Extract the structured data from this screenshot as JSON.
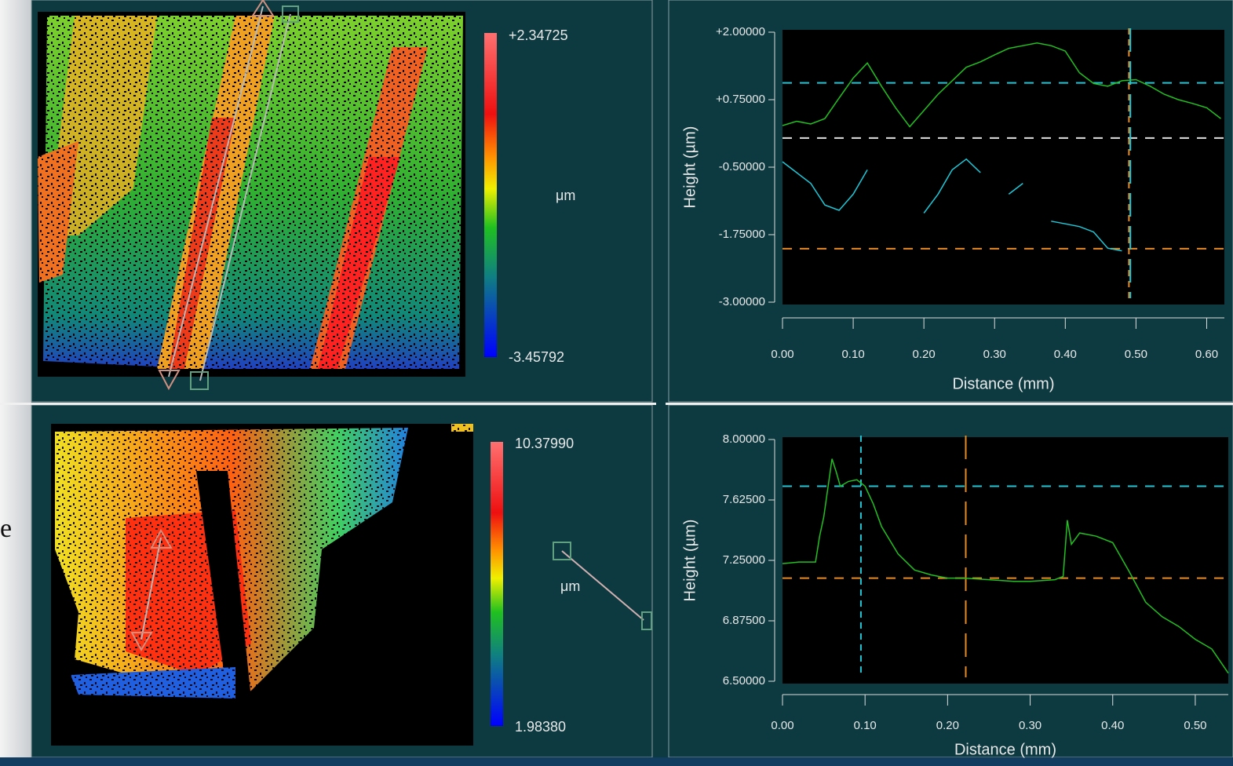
{
  "left_margin": {
    "text": "e"
  },
  "maps": [
    {
      "max_label": "+2.34725",
      "unit": "μm",
      "min_label": "-3.45792"
    },
    {
      "max_label": "10.37990",
      "unit": "μm",
      "min_label": "1.98380"
    }
  ],
  "chart_data": [
    {
      "type": "line",
      "xlabel": "Distance (mm)",
      "ylabel": "Height (µm)",
      "x": [
        0,
        0.02,
        0.04,
        0.06,
        0.08,
        0.1,
        0.12,
        0.14,
        0.16,
        0.18,
        0.2,
        0.22,
        0.24,
        0.26,
        0.28,
        0.3,
        0.32,
        0.34,
        0.36,
        0.38,
        0.4,
        0.42,
        0.44,
        0.46,
        0.48,
        0.5,
        0.52,
        0.54,
        0.56,
        0.58,
        0.6,
        0.62
      ],
      "xlim": [
        0,
        0.625
      ],
      "xticks": [
        {
          "value": 0,
          "label": "0.00"
        },
        {
          "value": 0.1,
          "label": "0.10"
        },
        {
          "value": 0.2,
          "label": "0.20"
        },
        {
          "value": 0.3,
          "label": "0.30"
        },
        {
          "value": 0.4,
          "label": "0.40"
        },
        {
          "value": 0.5,
          "label": "0.50"
        },
        {
          "value": 0.6,
          "label": "0.60"
        }
      ],
      "ylim": [
        -3,
        2
      ],
      "yticks": [
        {
          "value": 2,
          "label": "+2.00000"
        },
        {
          "value": 0.75,
          "label": "+0.75000"
        },
        {
          "value": -0.5,
          "label": "-0.50000"
        },
        {
          "value": -1.75,
          "label": "-1.75000"
        },
        {
          "value": -3,
          "label": "-3.00000"
        }
      ],
      "series": [
        {
          "color": "#22c020",
          "values": [
            0.27,
            0.35,
            0.3,
            0.4,
            0.78,
            1.15,
            1.43,
            1.0,
            0.6,
            0.25,
            0.55,
            0.85,
            1.1,
            1.35,
            1.45,
            1.58,
            1.7,
            1.75,
            1.8,
            1.75,
            1.65,
            1.25,
            1.05,
            1.0,
            1.1,
            1.12,
            1.0,
            0.85,
            0.75,
            0.68,
            0.6,
            0.4
          ]
        },
        {
          "color": "#1ec8d8",
          "values": [
            -0.4,
            -0.6,
            -0.8,
            -1.2,
            -1.3,
            -1.0,
            -0.55,
            null,
            -0.05,
            null,
            -1.35,
            -1.0,
            -0.55,
            -0.35,
            -0.6,
            null,
            -1.0,
            -0.8,
            null,
            -1.5,
            -1.55,
            -1.6,
            -1.7,
            -2.0,
            -2.05,
            null,
            null,
            null,
            null,
            null,
            null,
            null
          ]
        }
      ],
      "hlines": [
        {
          "value": 1.06,
          "color": "#1ec8d8"
        },
        {
          "value": 0.04,
          "color": "#e0e0e0"
        },
        {
          "value": -2.01,
          "color": "#e88a20"
        }
      ],
      "vlines": [
        {
          "value": 0.49,
          "color": "#e88a20"
        },
        {
          "value": 0.492,
          "color": "#1ec8d8"
        }
      ]
    },
    {
      "type": "line",
      "xlabel": "Distance (mm)",
      "ylabel": "Height (µm)",
      "x": [
        0,
        0.02,
        0.04,
        0.045,
        0.05,
        0.06,
        0.065,
        0.07,
        0.08,
        0.09,
        0.1,
        0.11,
        0.12,
        0.14,
        0.16,
        0.18,
        0.2,
        0.22,
        0.25,
        0.28,
        0.3,
        0.33,
        0.34,
        0.345,
        0.35,
        0.36,
        0.38,
        0.4,
        0.42,
        0.44,
        0.46,
        0.48,
        0.5,
        0.52,
        0.54
      ],
      "xlim": [
        0,
        0.54
      ],
      "xticks": [
        {
          "value": 0,
          "label": "0.00"
        },
        {
          "value": 0.1,
          "label": "0.10"
        },
        {
          "value": 0.2,
          "label": "0.20"
        },
        {
          "value": 0.3,
          "label": "0.30"
        },
        {
          "value": 0.4,
          "label": "0.40"
        },
        {
          "value": 0.5,
          "label": "0.50"
        }
      ],
      "ylim": [
        6.5,
        8.0
      ],
      "yticks": [
        {
          "value": 8,
          "label": "8.00000"
        },
        {
          "value": 7.625,
          "label": "7.62500"
        },
        {
          "value": 7.25,
          "label": "7.25000"
        },
        {
          "value": 6.875,
          "label": "6.87500"
        },
        {
          "value": 6.5,
          "label": "6.50000"
        }
      ],
      "series": [
        {
          "color": "#22c020",
          "values": [
            7.23,
            7.24,
            7.24,
            7.4,
            7.52,
            7.88,
            7.8,
            7.71,
            7.74,
            7.75,
            7.71,
            7.6,
            7.46,
            7.29,
            7.19,
            7.16,
            7.14,
            7.14,
            7.13,
            7.12,
            7.12,
            7.13,
            7.15,
            7.5,
            7.35,
            7.42,
            7.4,
            7.36,
            7.18,
            6.99,
            6.9,
            6.84,
            6.76,
            6.7,
            6.55
          ]
        }
      ],
      "hlines": [
        {
          "value": 7.71,
          "color": "#1ec8d8"
        },
        {
          "value": 7.14,
          "color": "#e88a20"
        }
      ],
      "vlines": [
        {
          "value": 0.095,
          "color": "#1ec8d8"
        },
        {
          "value": 0.222,
          "color": "#e88a20"
        }
      ]
    }
  ]
}
